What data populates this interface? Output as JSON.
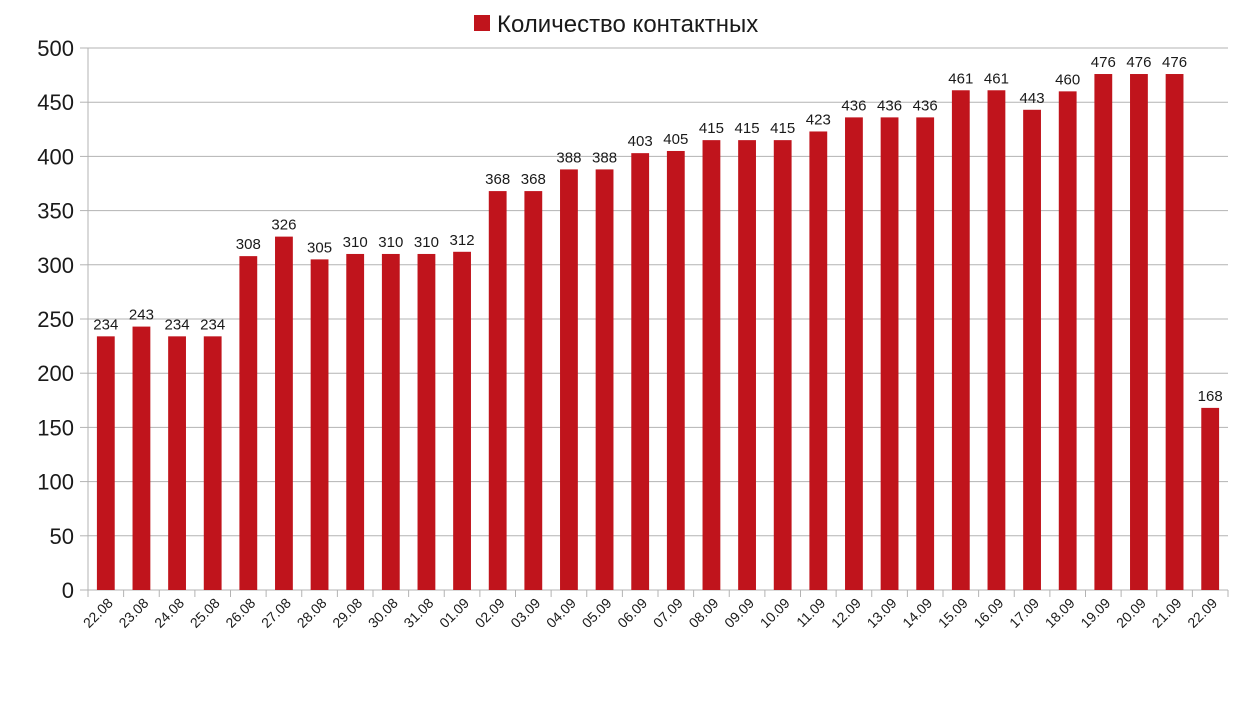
{
  "chart_data": {
    "type": "bar",
    "title": "",
    "xlabel": "",
    "ylabel": "",
    "ylim": [
      0,
      500
    ],
    "yticks": [
      0,
      50,
      100,
      150,
      200,
      250,
      300,
      350,
      400,
      450,
      500
    ],
    "grid": true,
    "legend_position": "top-center",
    "bar_color": "#c0141c",
    "categories": [
      "22.08",
      "23.08",
      "24.08",
      "25.08",
      "26.08",
      "27.08",
      "28.08",
      "29.08",
      "30.08",
      "31.08",
      "01.09",
      "02.09",
      "03.09",
      "04.09",
      "05.09",
      "06.09",
      "07.09",
      "08.09",
      "09.09",
      "10.09",
      "11.09",
      "12.09",
      "13.09",
      "14.09",
      "15.09",
      "16.09",
      "17.09",
      "18.09",
      "19.09",
      "20.09",
      "21.09",
      "22.09"
    ],
    "series": [
      {
        "name": "Количество контактных",
        "values": [
          234,
          243,
          234,
          234,
          308,
          326,
          305,
          310,
          310,
          310,
          312,
          368,
          368,
          388,
          388,
          403,
          405,
          415,
          415,
          415,
          423,
          436,
          436,
          436,
          461,
          461,
          443,
          460,
          476,
          476,
          476,
          168
        ]
      }
    ]
  }
}
